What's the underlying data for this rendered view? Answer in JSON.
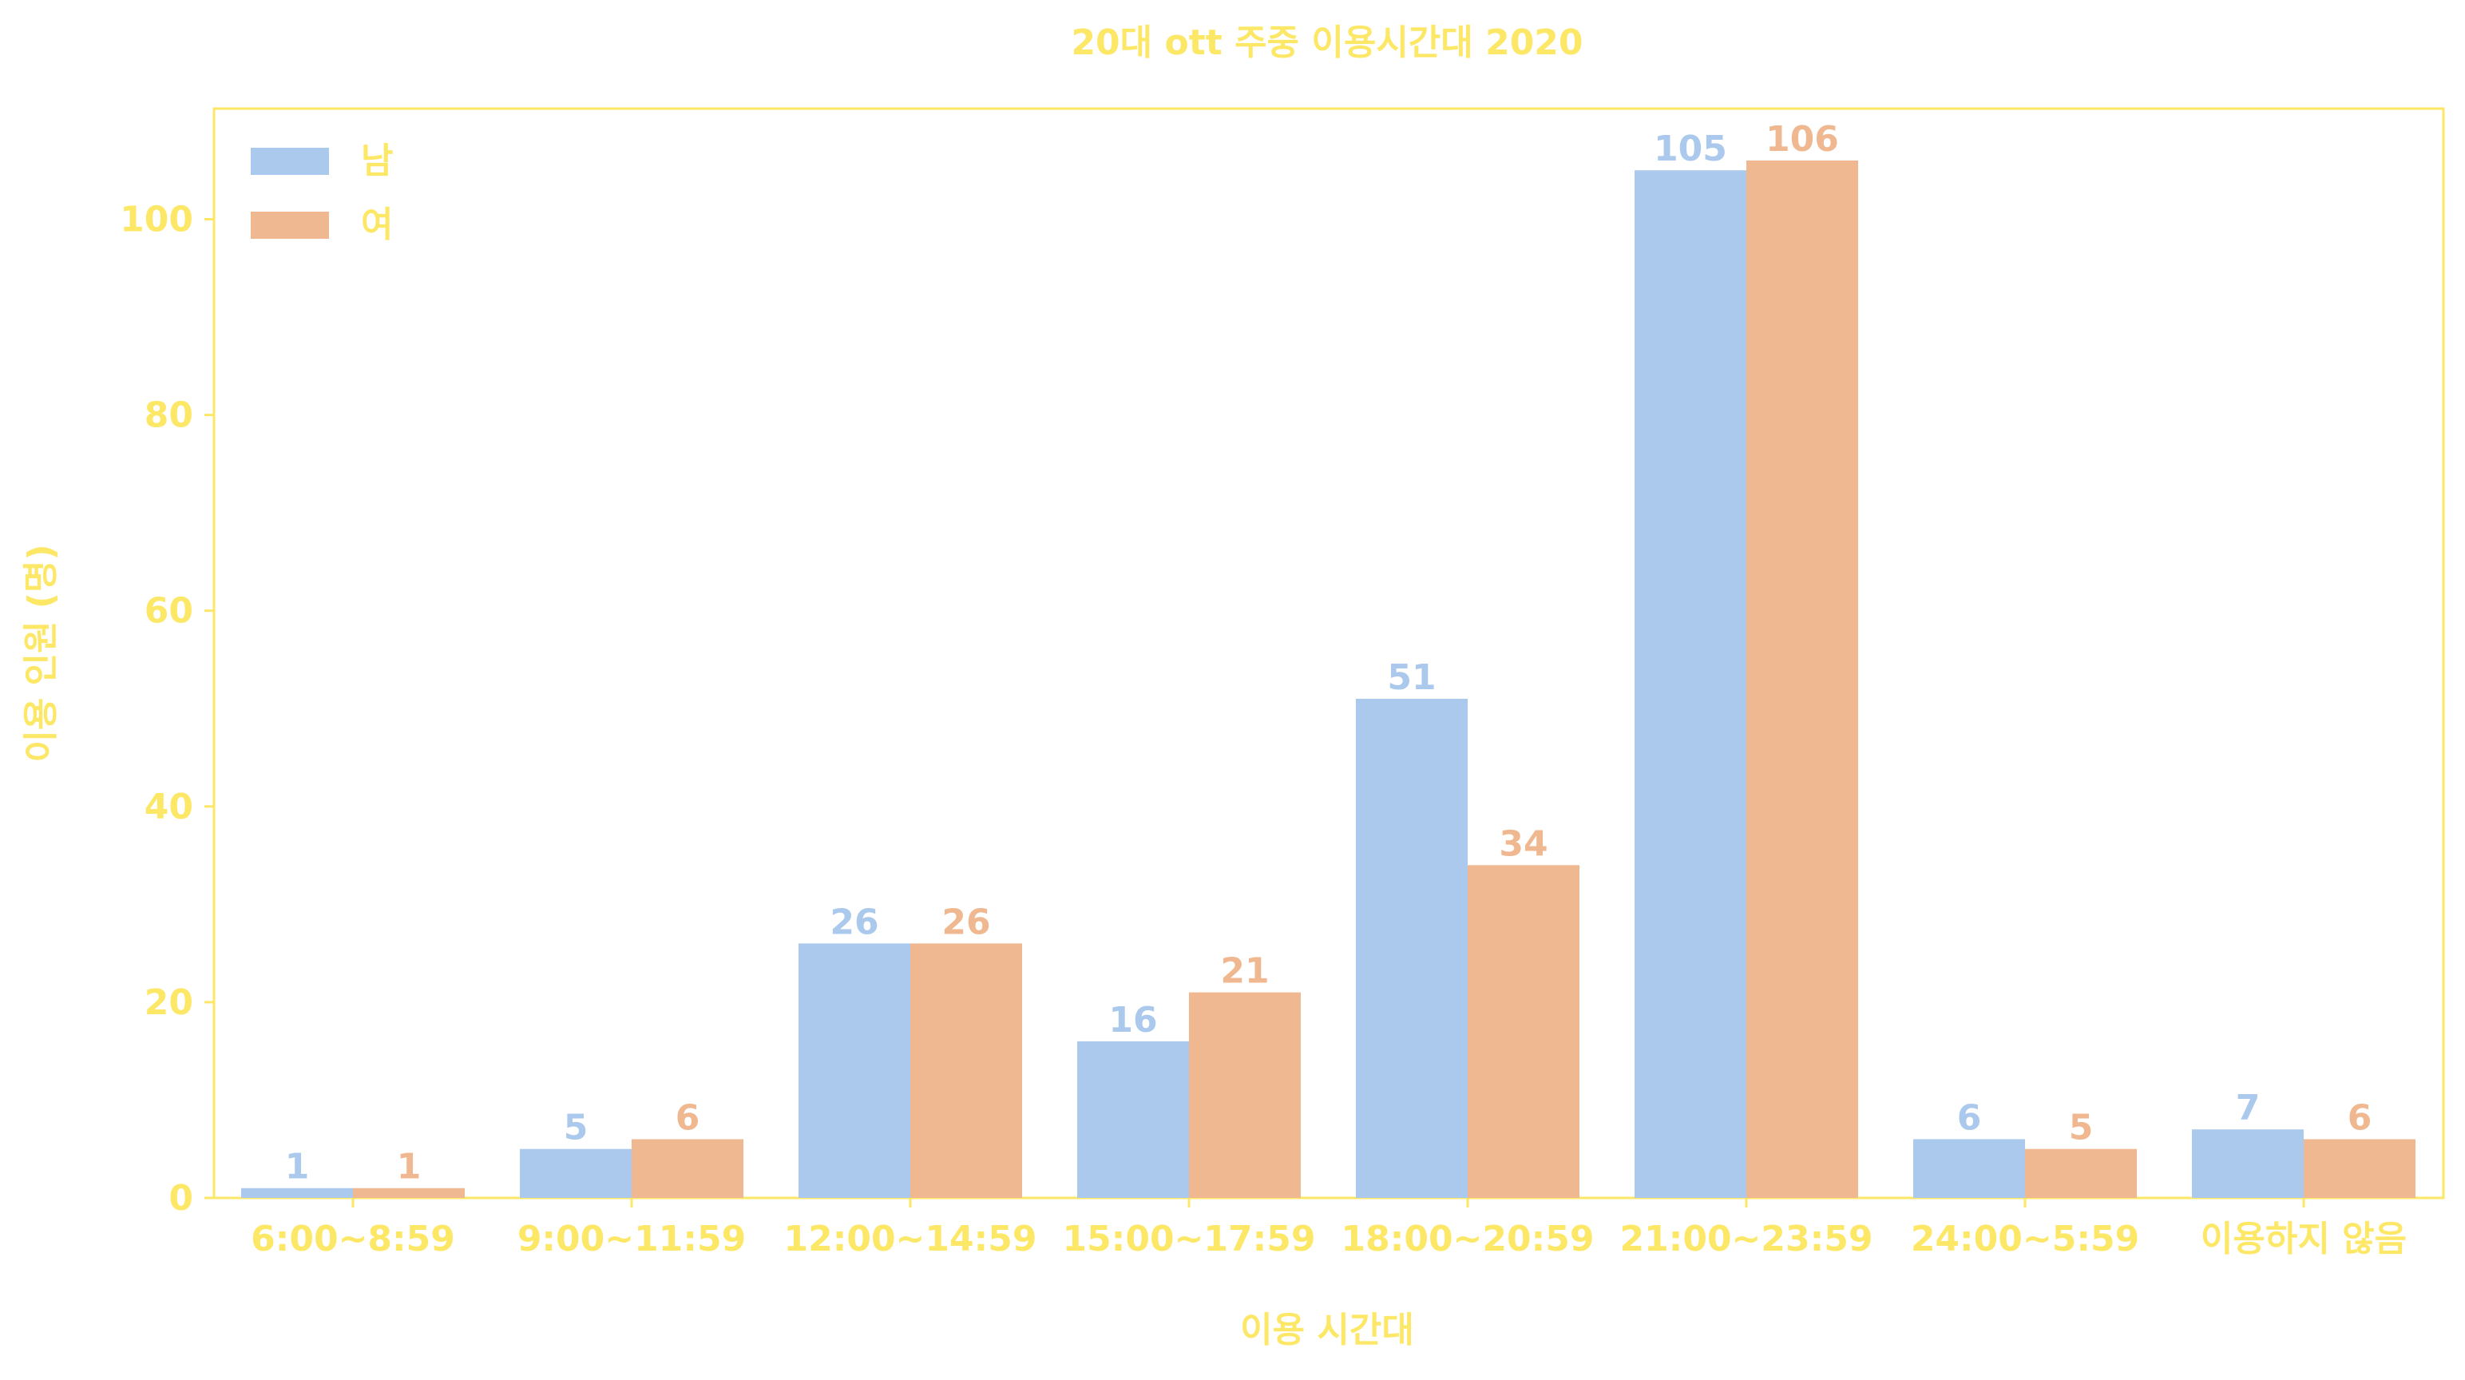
{
  "chart_data": {
    "type": "bar",
    "title": "20대 ott 주중 이용시간대 2020",
    "xlabel": "이용 시간대",
    "ylabel": "이용 인원 (명)",
    "categories": [
      "6:00~8:59",
      "9:00~11:59",
      "12:00~14:59",
      "15:00~17:59",
      "18:00~20:59",
      "21:00~23:59",
      "24:00~5:59",
      "이용하지 않음"
    ],
    "series": [
      {
        "name": "남",
        "values": [
          1,
          5,
          26,
          16,
          51,
          105,
          6,
          7
        ],
        "color": "#abc9ec"
      },
      {
        "name": "여",
        "values": [
          1,
          6,
          26,
          21,
          34,
          106,
          5,
          6
        ],
        "color": "#f0b890"
      }
    ],
    "ylim": [
      0,
      111.3
    ],
    "yticks": [
      0,
      20,
      40,
      60,
      80,
      100
    ],
    "grid": false,
    "legend_position": "top-left",
    "text_color": "#fde767",
    "frame_color": "#fde767"
  }
}
